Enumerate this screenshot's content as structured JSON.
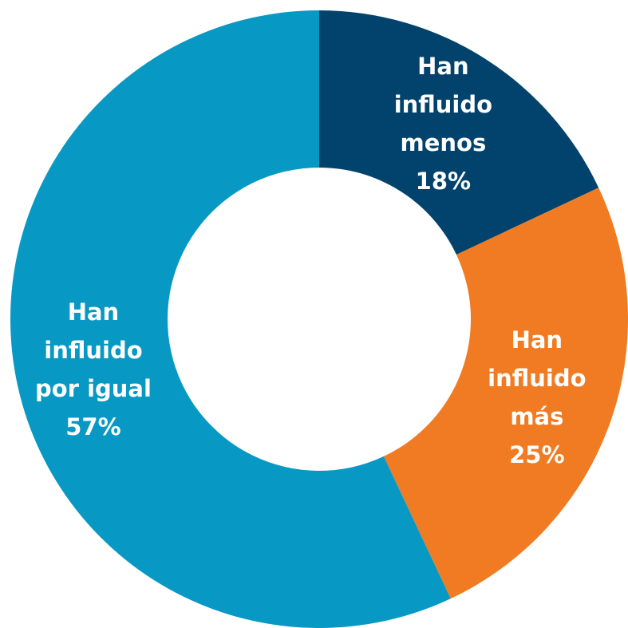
{
  "chart_data": {
    "type": "donut",
    "categories": [
      "Han influido menos",
      "Han influido más",
      "Han influido por igual"
    ],
    "values": [
      18,
      25,
      57
    ],
    "value_labels": [
      "18%",
      "25%",
      "57%"
    ],
    "colors": [
      "#02436e",
      "#f07b22",
      "#0798c3"
    ]
  }
}
